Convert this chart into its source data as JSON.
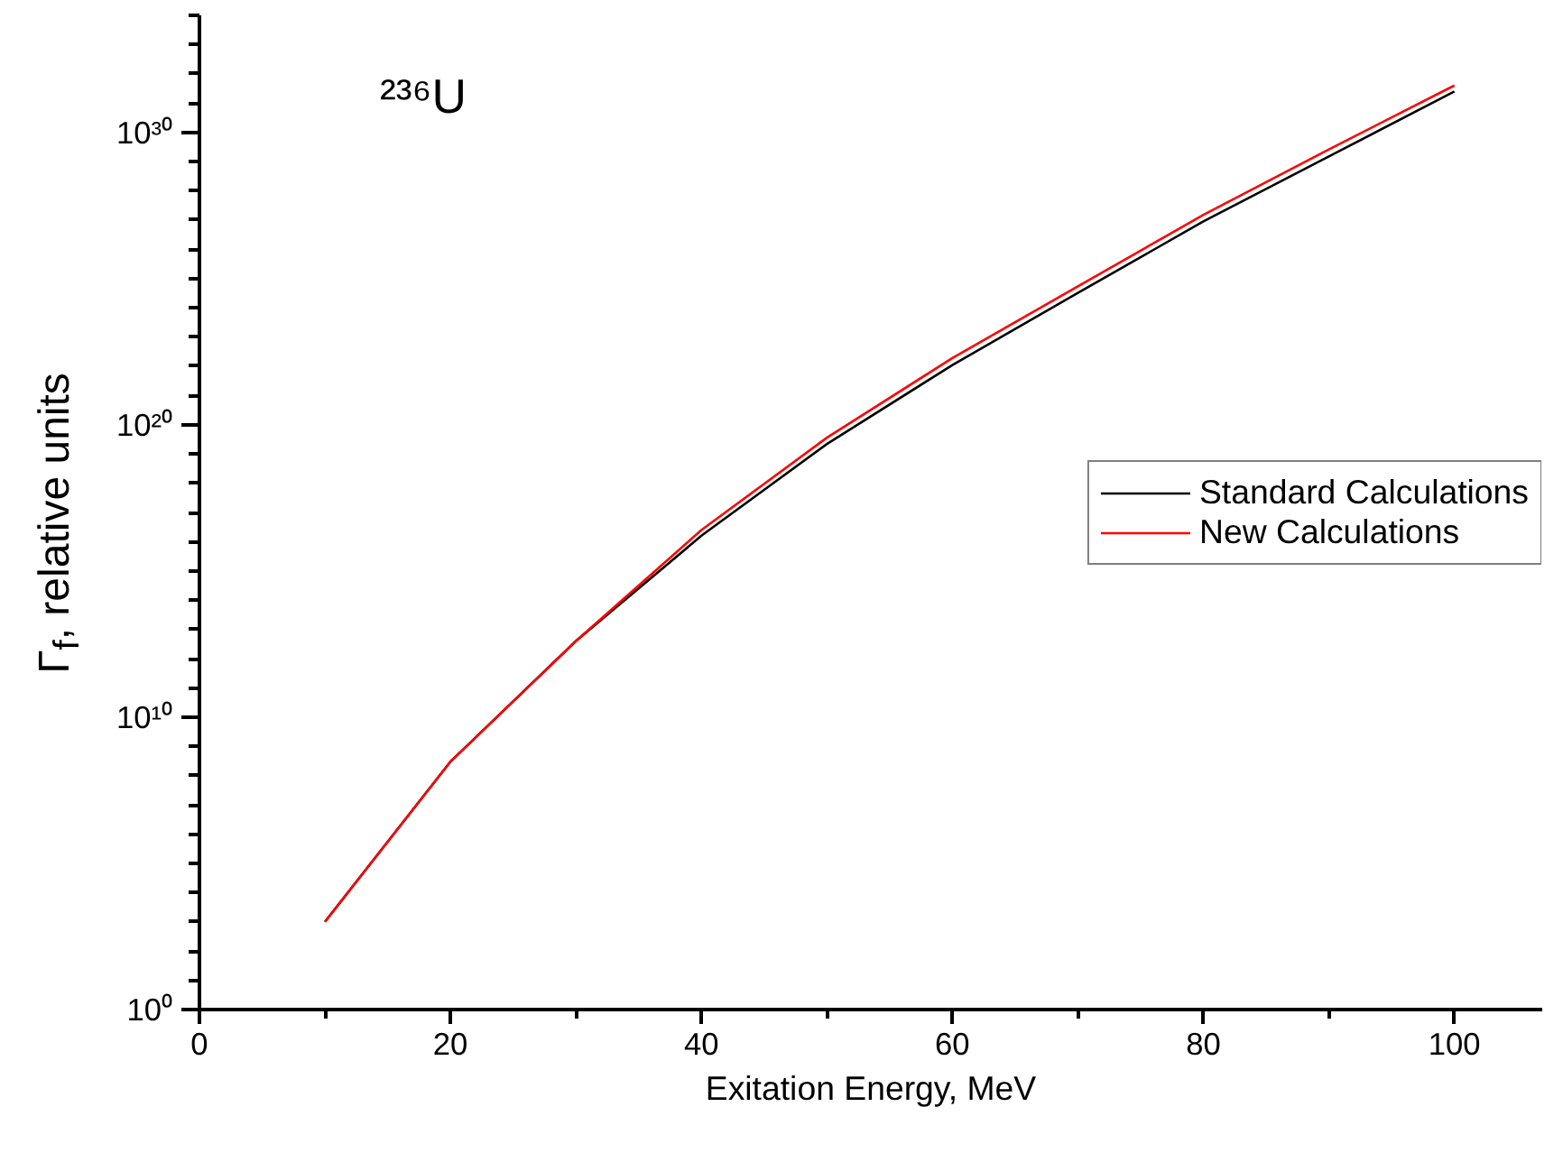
{
  "chart_data": {
    "type": "line",
    "xlabel": "Exitation Energy, MeV",
    "ylabel": "Γ$_{f}$, relative units",
    "annotations": [
      "²³⁶U"
    ],
    "x": [
      10,
      20,
      30,
      40,
      50,
      60,
      70,
      80,
      90,
      100
    ],
    "series": [
      {
        "name": "Standard Calculations",
        "color": "#000000",
        "values": [
          1000.0,
          300000000.0,
          4000000000000.0,
          1.6e+16,
          2.2e+19,
          1.1e+22,
          3.2e+24,
          9e+26,
          1.5e+29,
          2.5e+31
        ]
      },
      {
        "name": "New Calculations",
        "color": "#ff0000",
        "values": [
          1000.0,
          300000000.0,
          4000000000000.0,
          2.5e+16,
          3.6e+19,
          1.9e+22,
          5.4e+24,
          1.5e+27,
          2.6e+29,
          4e+31
        ]
      }
    ],
    "log": "y",
    "xlim": [
      0,
      107
    ],
    "ylim": [
      1,
      1e+34
    ],
    "xticks": [
      0,
      {
        "value": 10,
        "label": null
      },
      20,
      {
        "value": 30,
        "label": null
      },
      40,
      {
        "value": 50,
        "label": null
      },
      60,
      {
        "value": 70,
        "label": null
      },
      80,
      {
        "value": 90,
        "label": null
      },
      100
    ],
    "yticks": [
      {
        "value": 1,
        "label": "10⁰"
      },
      {
        "value": 10000000000.0,
        "label": "10¹⁰"
      },
      {
        "value": 1e+20,
        "label": "10²⁰"
      },
      {
        "value": 1e+30,
        "label": "10³⁰"
      }
    ],
    "grid": false,
    "legend": "right",
    "line_style": "solid",
    "marker": "none"
  }
}
